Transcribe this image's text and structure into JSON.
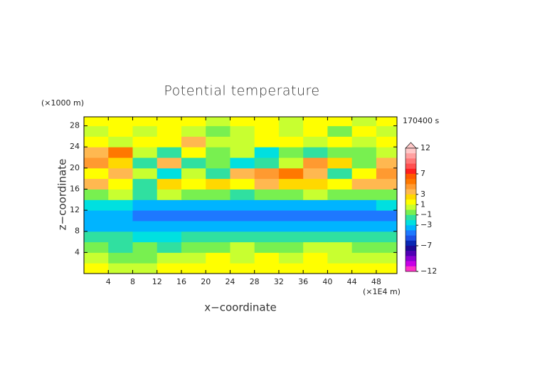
{
  "chart_data": {
    "type": "heatmap",
    "title": "Potential temperature",
    "x_label": "x−coordinate",
    "y_label": "z−coordinate",
    "x_unit_label": "(×1E4 m)",
    "y_unit_label": "(×1000 m)",
    "time_label": "170400 s",
    "x": [
      2,
      6,
      10,
      14,
      18,
      22,
      26,
      30,
      34,
      38,
      42,
      46,
      50
    ],
    "z": [
      1,
      3,
      5,
      7,
      9,
      11,
      13,
      15,
      17,
      19,
      21,
      23,
      25,
      27,
      29
    ],
    "values": [
      [
        1.5,
        0.5,
        0.5,
        1.5,
        1.5,
        1.5,
        1.5,
        1.5,
        1.5,
        1.5,
        1.5,
        1.5,
        1.5
      ],
      [
        0.5,
        -0.5,
        -0.5,
        0.5,
        0.5,
        1.5,
        0.5,
        1.5,
        0.5,
        1.5,
        0.5,
        0.5,
        0.5
      ],
      [
        -0.5,
        -1.5,
        -0.5,
        -1.5,
        -0.5,
        -0.5,
        0.5,
        -0.5,
        -0.5,
        0.5,
        0.5,
        -0.5,
        -0.5
      ],
      [
        -1.5,
        -1.5,
        -2.5,
        -2.5,
        -1.5,
        -1.5,
        -1.5,
        -1.5,
        -1.5,
        -1.5,
        -1.5,
        -1.5,
        -1.5
      ],
      [
        -3.5,
        -3.5,
        -3.5,
        -3.5,
        -3.5,
        -3.5,
        -3.5,
        -3.5,
        -3.5,
        -3.5,
        -3.5,
        -3.5,
        -3.5
      ],
      [
        -3.5,
        -3.5,
        -4.5,
        -4.5,
        -4.5,
        -4.5,
        -4.5,
        -4.5,
        -4.5,
        -4.5,
        -4.5,
        -4.5,
        -4.5
      ],
      [
        -2.5,
        -2.5,
        -3.5,
        -3.5,
        -3.5,
        -3.5,
        -3.5,
        -3.5,
        -3.5,
        -3.5,
        -3.5,
        -3.5,
        -2.5
      ],
      [
        -0.5,
        0.5,
        -1.5,
        0.5,
        -0.5,
        -0.5,
        -1.5,
        -0.5,
        -0.5,
        0.5,
        -0.5,
        -0.5,
        -0.5
      ],
      [
        3.5,
        1.5,
        -1.5,
        2.5,
        1.5,
        2.5,
        1.5,
        3.5,
        2.5,
        2.5,
        1.5,
        3.5,
        3.5
      ],
      [
        1.5,
        3.5,
        0.5,
        -2.5,
        0.5,
        -1.5,
        3.5,
        4.5,
        5.5,
        3.5,
        -1.5,
        1.5,
        4.5
      ],
      [
        4.5,
        2.5,
        -1.5,
        3.5,
        -1.5,
        -0.5,
        -2.5,
        -1.5,
        0.5,
        4.5,
        2.5,
        -0.5,
        3.5
      ],
      [
        3.5,
        5.5,
        0.5,
        -1.5,
        1.5,
        -0.5,
        0.5,
        -2.5,
        -0.5,
        -1.5,
        -0.5,
        -0.5,
        0.5
      ],
      [
        1.5,
        0.5,
        1.5,
        1.5,
        3.5,
        0.5,
        0.5,
        1.5,
        1.5,
        0.5,
        1.5,
        0.5,
        1.5
      ],
      [
        0.5,
        1.5,
        0.5,
        1.5,
        0.5,
        -0.5,
        0.5,
        1.5,
        0.5,
        1.5,
        -0.5,
        1.5,
        0.5
      ],
      [
        1.5,
        1.5,
        1.5,
        1.5,
        1.5,
        0.5,
        1.5,
        1.5,
        0.5,
        1.5,
        1.5,
        0.5,
        1.5
      ]
    ],
    "xlim": [
      0,
      51.4
    ],
    "ylim": [
      0,
      29.7
    ],
    "xticks": [
      4,
      8,
      12,
      16,
      20,
      24,
      28,
      32,
      36,
      40,
      44,
      48
    ],
    "yticks": [
      4,
      8,
      12,
      16,
      20,
      24,
      28
    ],
    "colorbar": {
      "levels": [
        12,
        11,
        10,
        9,
        8,
        7,
        6,
        5,
        4,
        3,
        2,
        1,
        0,
        -1,
        -2,
        -3,
        -4,
        -5,
        -6,
        -7,
        -8,
        -9,
        -10,
        -11,
        -12
      ],
      "colors": [
        "#ffc8c8",
        "#ffa0a0",
        "#ff7878",
        "#ff5050",
        "#ff2020",
        "#ff5a00",
        "#ff7800",
        "#ff9a30",
        "#ffb850",
        "#ffd800",
        "#ffff00",
        "#c8ff30",
        "#78f050",
        "#30e0a0",
        "#00e0e0",
        "#00b4ff",
        "#1e78ff",
        "#1e50e6",
        "#0a28b4",
        "#1e0a96",
        "#5000b4",
        "#8c00d2",
        "#c800e6",
        "#ff32c8"
      ],
      "ticks": [
        12,
        7,
        3,
        1,
        {
          "value": -1,
          "label": "−1"
        },
        {
          "value": -3,
          "label": "−3"
        },
        {
          "value": -7,
          "label": "−7"
        },
        {
          "value": -12,
          "label": "−12"
        }
      ]
    }
  }
}
